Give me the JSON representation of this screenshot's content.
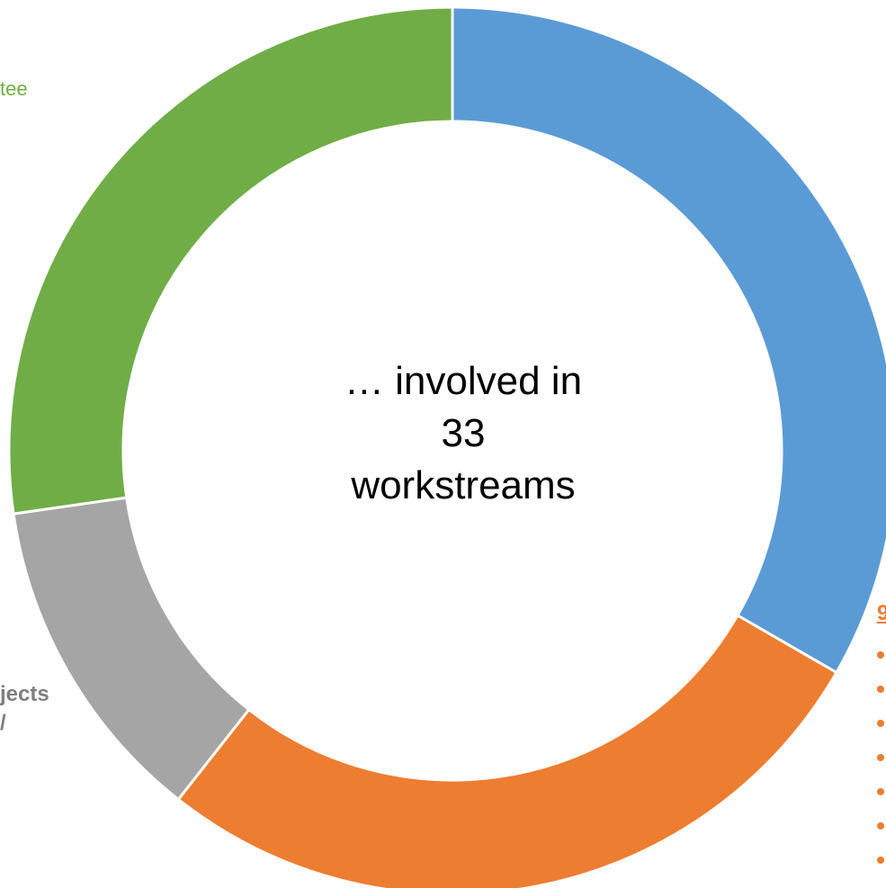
{
  "center_label": {
    "line1": "… involved in",
    "line2": "33",
    "line3": "workstreams"
  },
  "labels": {
    "green_fragment": "tee",
    "gray_fragment_1": "jects",
    "gray_fragment_2": "/",
    "orange_fragment": "9"
  },
  "colors": {
    "blue": "#5b9bd5",
    "orange": "#ed7d31",
    "gray": "#a5a5a5",
    "green": "#70ad47"
  },
  "chart_data": {
    "type": "pie",
    "total": 33,
    "start": "12 o'clock",
    "direction": "clockwise",
    "slices": [
      {
        "value": 11,
        "color": "#5b9bd5"
      },
      {
        "value": 9,
        "color": "#ed7d31"
      },
      {
        "value": 4,
        "color": "#a5a5a5"
      },
      {
        "value": 9,
        "color": "#70ad47"
      }
    ],
    "legend": "none"
  },
  "orange_bullets": 7
}
